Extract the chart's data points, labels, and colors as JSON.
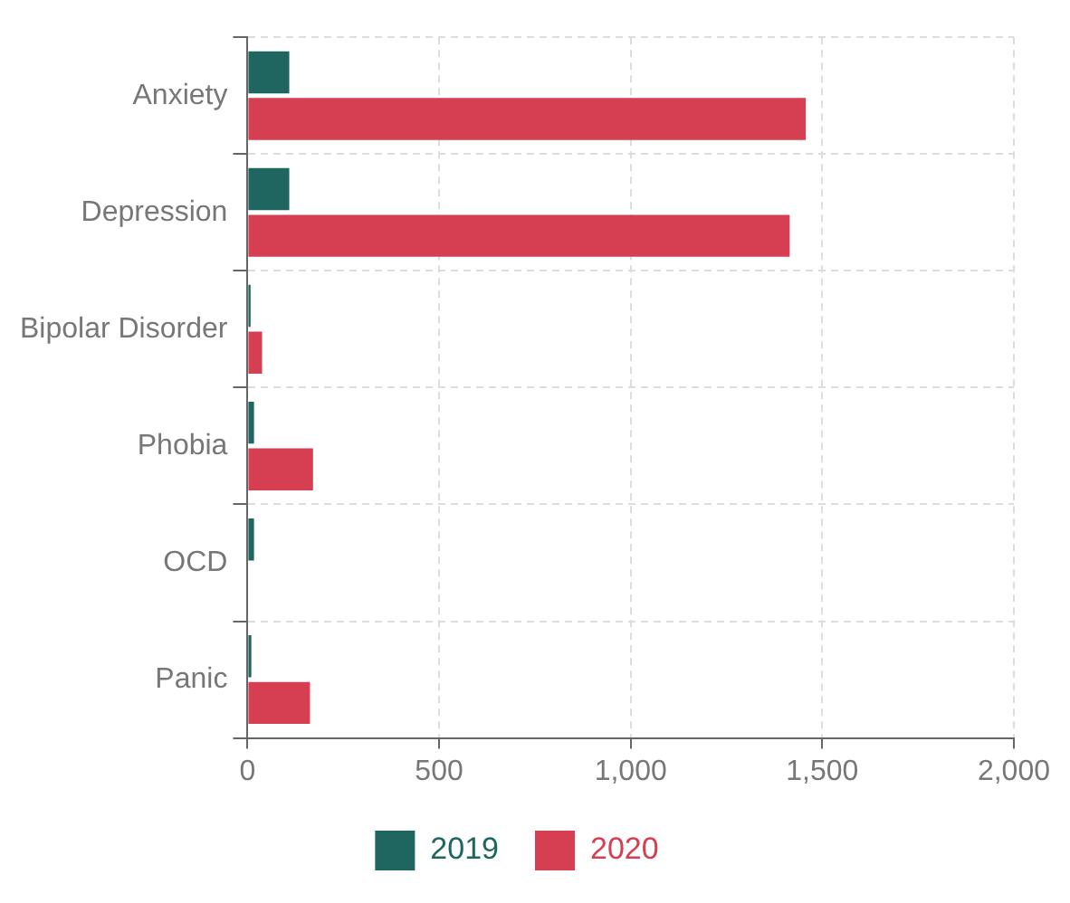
{
  "chart_data": {
    "type": "bar",
    "orientation": "horizontal",
    "categories": [
      "Anxiety",
      "Depression",
      "Bipolar Disorder",
      "Phobia",
      "OCD",
      "Panic"
    ],
    "series": [
      {
        "name": "2019",
        "color": "#1f6660",
        "values": [
          109,
          109,
          8,
          17,
          17,
          10
        ]
      },
      {
        "name": "2020",
        "color": "#d63e52",
        "values": [
          1457,
          1415,
          38,
          171,
          0,
          163
        ]
      }
    ],
    "xlim": [
      0,
      2000
    ],
    "xticks": [
      0,
      500,
      {
        "value": 1000,
        "label": "1,000"
      },
      {
        "value": 1500,
        "label": "1,500"
      },
      {
        "value": 2000,
        "label": "2,000"
      }
    ],
    "grid": true,
    "legend": "bottom"
  }
}
